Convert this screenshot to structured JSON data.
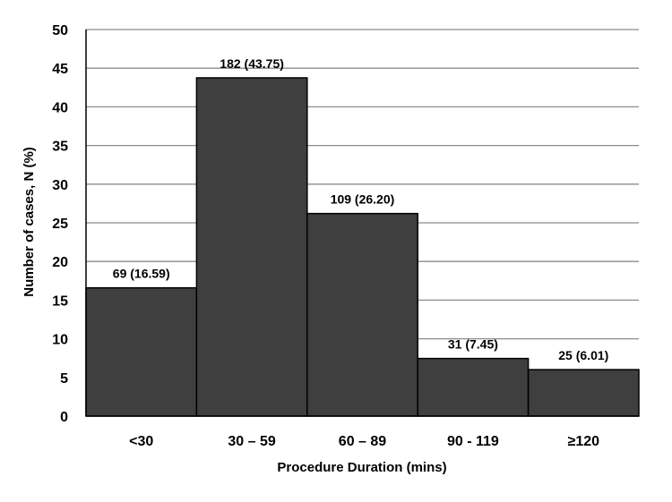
{
  "chart_data": {
    "type": "bar",
    "title": "",
    "xlabel": "Procedure Duration (mins)",
    "ylabel": "Number of cases, N (%)",
    "categories": [
      "<30",
      "30 – 59",
      "60 – 89",
      "90 - 119",
      "≥120"
    ],
    "values": [
      16.59,
      43.75,
      26.2,
      7.45,
      6.01
    ],
    "data_labels": [
      "69 (16.59)",
      "182 (43.75)",
      "109 (26.20)",
      "31 (7.45)",
      "25 (6.01)"
    ],
    "ylim": [
      0,
      50
    ],
    "yticks": [
      0,
      5,
      10,
      15,
      20,
      25,
      30,
      35,
      40,
      45,
      50
    ],
    "grid": true,
    "legend": "none",
    "colors": {
      "bar": "#3f3f3f",
      "bar_edge": "#000000",
      "grid": "#8c8c8c"
    }
  }
}
